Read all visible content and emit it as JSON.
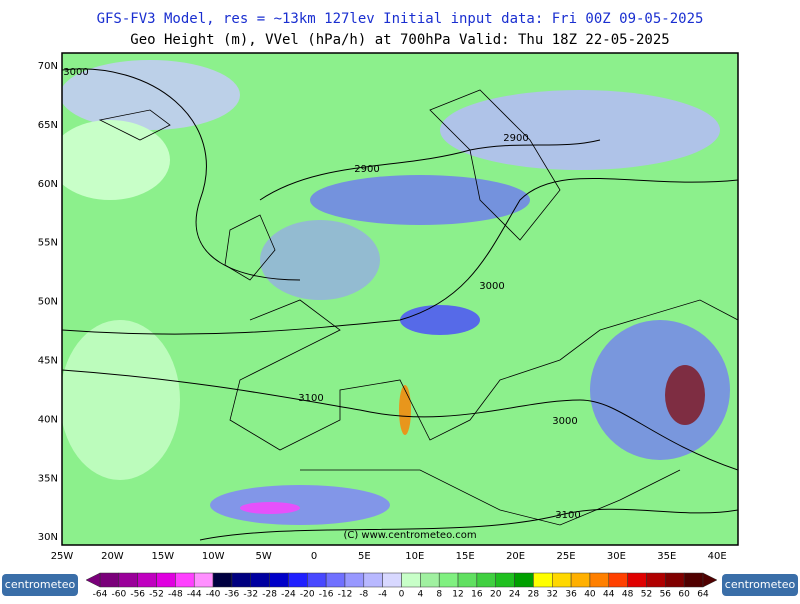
{
  "header": {
    "line1": "GFS-FV3 Model, res = ~13km 127lev    Initial input data: Fri 00Z 09-05-2025",
    "line2": "Geo Height (m), VVel (hPa/h) at 700hPa  Valid: Thu 18Z 22-05-2025"
  },
  "map": {
    "lat_labels": [
      "70N",
      "65N",
      "60N",
      "55N",
      "50N",
      "45N",
      "40N",
      "35N",
      "30N"
    ],
    "lon_labels": [
      "25W",
      "20W",
      "15W",
      "10W",
      "5W",
      "0",
      "5E",
      "10E",
      "15E",
      "20E",
      "25E",
      "30E",
      "35E",
      "40E"
    ],
    "contour_labels": [
      "3000",
      "2900",
      "2900",
      "3000",
      "3100",
      "3000",
      "3100"
    ],
    "copyright": "(C) www.centrometeo.com"
  },
  "colorbar": {
    "ticks": [
      -64,
      -60,
      -56,
      -52,
      -48,
      -44,
      -40,
      -36,
      -32,
      -28,
      -24,
      -20,
      -16,
      -12,
      -8,
      -4,
      0,
      4,
      8,
      12,
      16,
      20,
      24,
      28,
      32,
      36,
      40,
      44,
      48,
      52,
      56,
      60,
      64
    ],
    "colors": [
      "#7a007a",
      "#9a009a",
      "#c000c0",
      "#e000e0",
      "#ff40ff",
      "#ff90ff",
      "#000040",
      "#000080",
      "#0000a0",
      "#0000c8",
      "#2020ff",
      "#4848ff",
      "#7070ff",
      "#9898ff",
      "#b8b8ff",
      "#d8d8ff",
      "#c8ffc8",
      "#a0f0a0",
      "#80f080",
      "#60e060",
      "#40d040",
      "#20c020",
      "#00a000",
      "#ffff00",
      "#ffd800",
      "#ffb000",
      "#ff8000",
      "#ff4000",
      "#e00000",
      "#b00000",
      "#800000",
      "#500000"
    ]
  },
  "logos": [
    "centrometeo",
    "centrometeo"
  ]
}
